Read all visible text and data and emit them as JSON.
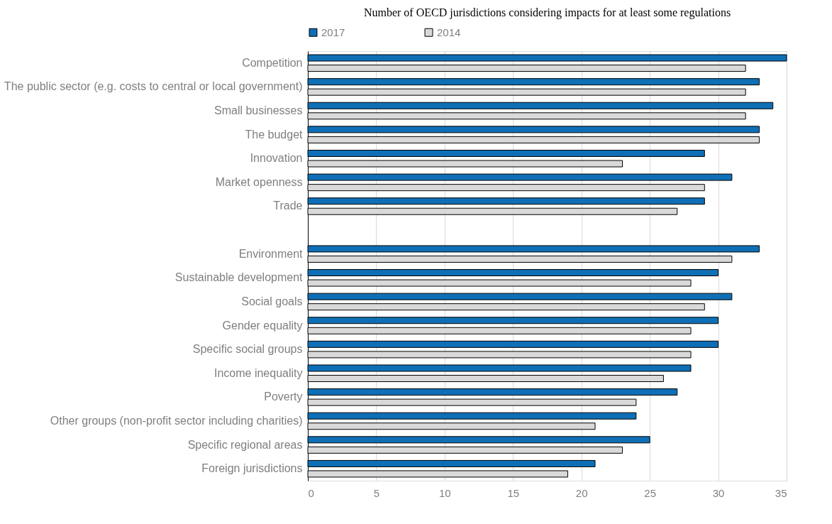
{
  "chart_data": {
    "type": "bar",
    "orientation": "horizontal",
    "title": "Number of OECD jurisdictions considering impacts for at least some regulations",
    "categories": [
      "Competition",
      "The public sector (e.g. costs to central or local government)",
      "Small businesses",
      "The budget",
      "Innovation",
      "Market openness",
      "Trade",
      null,
      "Environment",
      "Sustainable development",
      "Social goals",
      "Gender equality",
      "Specific social groups",
      "Income inequality",
      "Poverty",
      "Other groups (non-profit sector including charities)",
      "Specific regional areas",
      "Foreign jurisdictions"
    ],
    "series": [
      {
        "name": "2017",
        "color": "#0f6fb6",
        "values": [
          35,
          33,
          34,
          33,
          29,
          31,
          29,
          null,
          33,
          30,
          31,
          30,
          30,
          28,
          27,
          24,
          25,
          21
        ]
      },
      {
        "name": "2014",
        "color": "#d9d9d9",
        "values": [
          32,
          32,
          32,
          33,
          23,
          29,
          27,
          null,
          31,
          28,
          29,
          28,
          28,
          26,
          24,
          21,
          23,
          19
        ]
      }
    ],
    "xlim": [
      0,
      35
    ],
    "xticks": [
      0,
      5,
      10,
      15,
      20,
      25,
      30,
      35
    ],
    "grid": "x",
    "legend": "top"
  }
}
